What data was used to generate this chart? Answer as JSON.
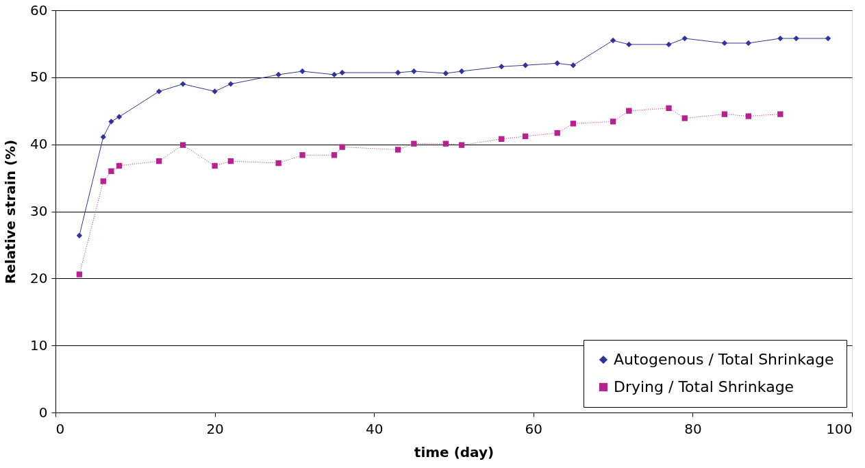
{
  "chart_data": {
    "type": "line",
    "xlabel": "time (day)",
    "ylabel": "Relative strain (%)",
    "x": [
      3,
      6,
      7,
      8,
      13,
      16,
      20,
      22,
      28,
      31,
      35,
      36,
      43,
      45,
      49,
      51,
      56,
      59,
      63,
      65,
      70,
      72,
      77,
      79,
      84,
      87,
      91,
      93,
      97
    ],
    "series": [
      {
        "name": "Autogenous / Total Shrinkage",
        "color": "#333399",
        "marker": "diamond",
        "line_style": "solid",
        "values": [
          26.4,
          41.1,
          43.4,
          44.1,
          47.9,
          49.0,
          47.9,
          49.0,
          50.4,
          50.9,
          50.4,
          50.7,
          50.7,
          50.9,
          50.6,
          50.9,
          51.6,
          51.8,
          52.1,
          51.8,
          55.5,
          54.9,
          54.9,
          55.8,
          55.1,
          55.1,
          55.8,
          55.8,
          55.8
        ]
      },
      {
        "name": "Drying / Total Shrinkage",
        "color": "#b5238f",
        "marker": "square",
        "line_style": "dotted",
        "x": [
          3,
          6,
          7,
          8,
          13,
          16,
          20,
          22,
          28,
          31,
          35,
          36,
          43,
          45,
          49,
          51,
          56,
          59,
          63,
          65,
          70,
          72,
          77,
          79,
          84,
          87,
          91
        ],
        "values": [
          20.6,
          34.5,
          36.0,
          36.8,
          37.5,
          39.9,
          36.8,
          37.5,
          37.2,
          38.4,
          38.4,
          39.6,
          39.2,
          40.1,
          40.1,
          39.9,
          40.8,
          41.2,
          41.7,
          43.1,
          43.4,
          45.0,
          45.4,
          43.9,
          44.5,
          44.2,
          44.5
        ]
      }
    ],
    "xlim": [
      0,
      100
    ],
    "xticks": [
      0,
      20,
      40,
      60,
      80,
      100
    ],
    "ylim": [
      0,
      60
    ],
    "yticks": [
      0,
      10,
      20,
      30,
      40,
      50,
      60
    ],
    "grid": "y",
    "legend": "bottom right"
  }
}
